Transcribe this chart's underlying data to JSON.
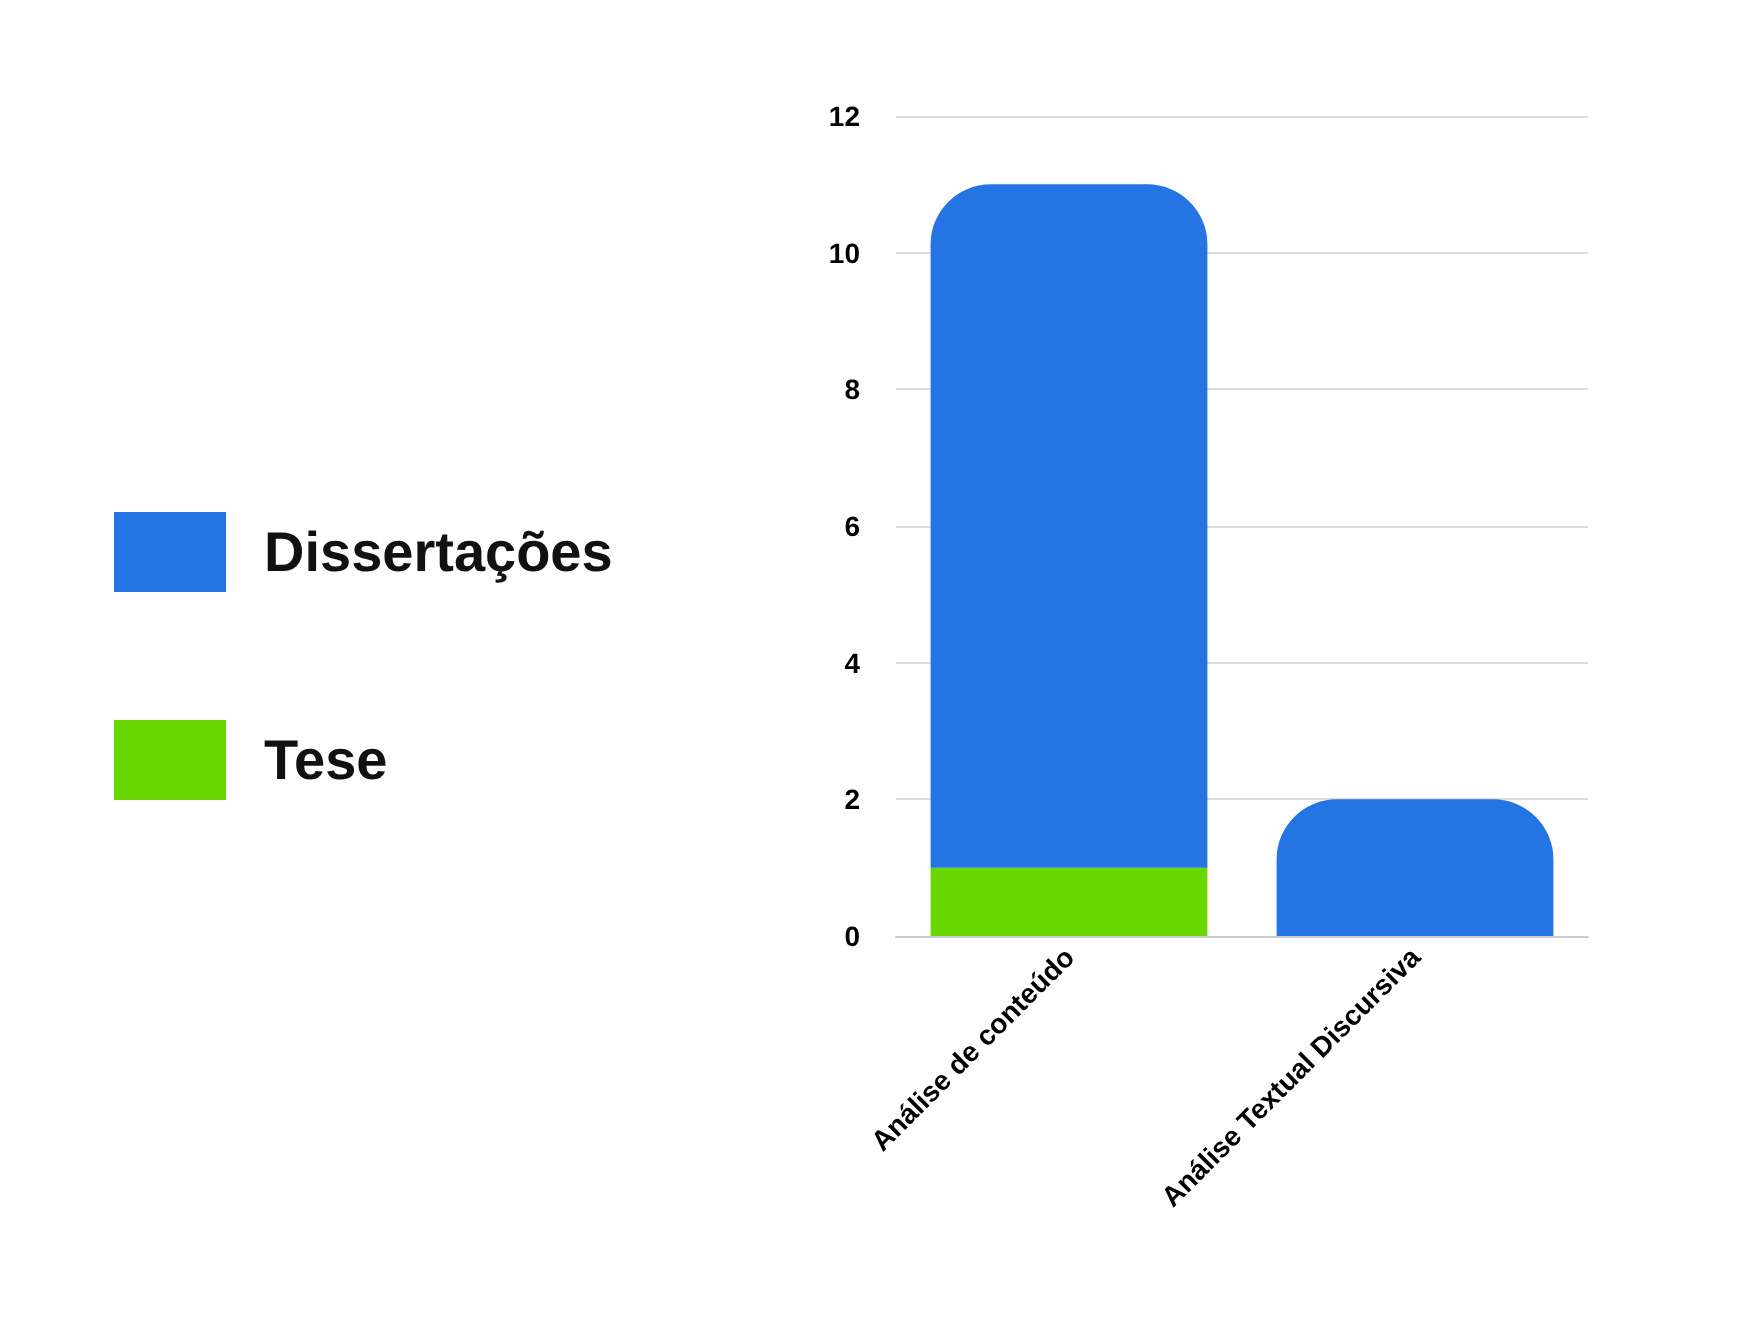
{
  "chart_data": {
    "type": "bar",
    "stacked": true,
    "categories": [
      "Análise de conteúdo",
      "Análise Textual Discursiva"
    ],
    "series": [
      {
        "name": "Tese",
        "color": "#6ad800",
        "values": [
          1,
          0
        ]
      },
      {
        "name": "Dissertações",
        "color": "#2574e3",
        "values": [
          10,
          2
        ]
      }
    ],
    "ylim": [
      0,
      12
    ],
    "yticks": [
      0,
      2,
      4,
      6,
      8,
      10,
      12
    ],
    "grid": "y",
    "legend": "left"
  }
}
